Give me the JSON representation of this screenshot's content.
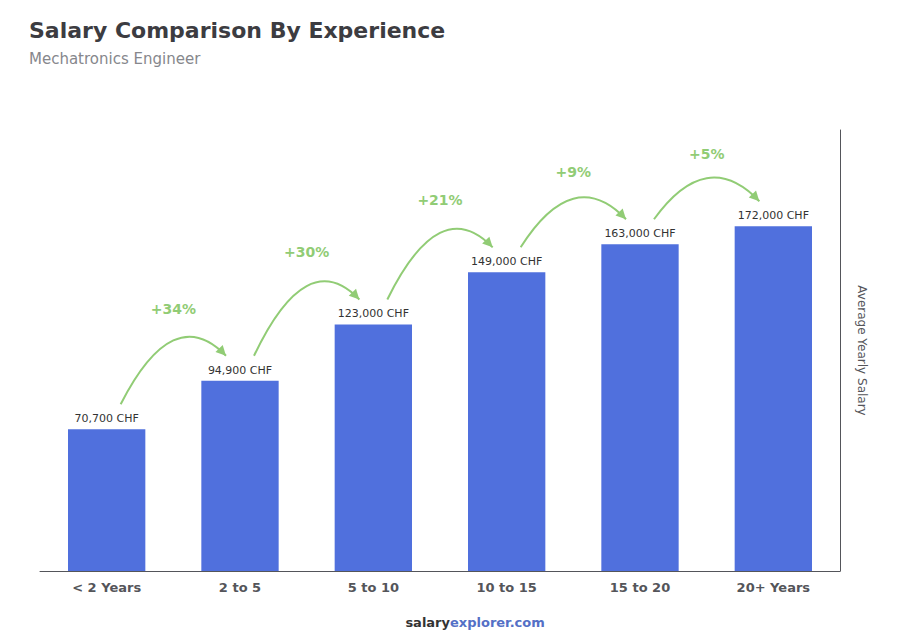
{
  "chart_data": {
    "type": "bar",
    "title": "Salary Comparison By Experience",
    "subtitle": "Mechatronics Engineer",
    "categories": [
      "< 2 Years",
      "2 to 5",
      "5 to 10",
      "10 to 15",
      "15 to 20",
      "20+ Years"
    ],
    "values": [
      70700,
      94900,
      123000,
      149000,
      163000,
      172000
    ],
    "value_labels": [
      "70,700 CHF",
      "94,900 CHF",
      "123,000 CHF",
      "149,000 CHF",
      "163,000 CHF",
      "172,000 CHF"
    ],
    "data_labels": true,
    "pct_changes": [
      null,
      "+34%",
      "+30%",
      "+21%",
      "+9%",
      "+5%"
    ],
    "y_label": "Average Yearly Salary",
    "footer": [
      "salary",
      "explorer.com"
    ],
    "ylim": [
      0,
      220000
    ],
    "tick_labels": "x",
    "grid": false
  }
}
